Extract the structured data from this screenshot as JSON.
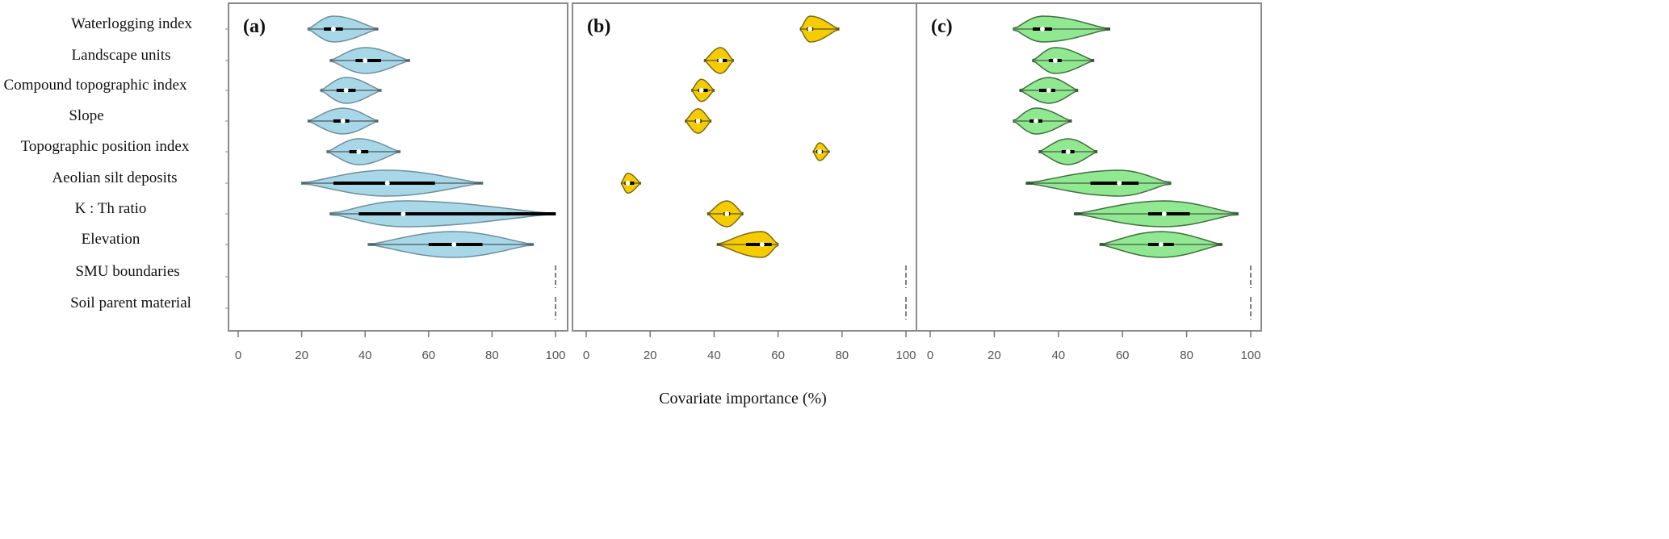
{
  "chart_data": {
    "type": "violin",
    "orientation": "horizontal",
    "xlabel": "Covariate importance (%)",
    "xlim": [
      0,
      100
    ],
    "xticks": [
      "0",
      "20",
      "40",
      "60",
      "80",
      "100"
    ],
    "categories": [
      "Waterlogging index",
      "Landscape units",
      "Compound topographic index",
      "Slope",
      "Topographic position index",
      "Aeolian silt deposits",
      "K : Th ratio",
      "Elevation",
      "SMU boundaries",
      "Soil parent material"
    ],
    "panels": [
      {
        "label": "(a)",
        "fill": "#a8d8e8",
        "stroke": "#6f8f9a",
        "violins": [
          {
            "min": 22,
            "q1": 27,
            "median": 30,
            "q3": 33,
            "max": 44
          },
          {
            "min": 29,
            "q1": 37,
            "median": 40,
            "q3": 45,
            "max": 54
          },
          {
            "min": 26,
            "q1": 31,
            "median": 34,
            "q3": 37,
            "max": 45
          },
          {
            "min": 22,
            "q1": 30,
            "median": 33,
            "q3": 35,
            "max": 44
          },
          {
            "min": 28,
            "q1": 35,
            "median": 38,
            "q3": 41,
            "max": 51
          },
          {
            "min": 20,
            "q1": 30,
            "median": 47,
            "q3": 62,
            "max": 77
          },
          {
            "min": 29,
            "q1": 38,
            "median": 52,
            "q3": 100,
            "max": 100
          },
          {
            "min": 41,
            "q1": 60,
            "median": 68,
            "q3": 77,
            "max": 93
          },
          {
            "min": 99.5,
            "q1": 100,
            "median": 100,
            "q3": 100,
            "max": 100
          },
          {
            "min": 99.5,
            "q1": 100,
            "median": 100,
            "q3": 100,
            "max": 100
          }
        ]
      },
      {
        "label": "(b)",
        "fill": "#f5cc00",
        "stroke": "#7a6a1a",
        "violins": [
          {
            "min": 67,
            "q1": 69,
            "median": 70,
            "q3": 71,
            "max": 79
          },
          {
            "min": 37,
            "q1": 41,
            "median": 42,
            "q3": 44,
            "max": 46
          },
          {
            "min": 33,
            "q1": 35,
            "median": 36,
            "q3": 38,
            "max": 40
          },
          {
            "min": 31,
            "q1": 34,
            "median": 35,
            "q3": 36,
            "max": 39
          },
          {
            "min": 71,
            "q1": 72,
            "median": 73,
            "q3": 74,
            "max": 76
          },
          {
            "min": 11,
            "q1": 12,
            "median": 13,
            "q3": 15,
            "max": 17
          },
          {
            "min": 38,
            "q1": 43,
            "median": 44,
            "q3": 45,
            "max": 49
          },
          {
            "min": 41,
            "q1": 50,
            "median": 55,
            "q3": 58,
            "max": 60
          },
          {
            "min": 100,
            "q1": 100,
            "median": 100,
            "q3": 100,
            "max": 100
          },
          {
            "min": 100,
            "q1": 100,
            "median": 100,
            "q3": 100,
            "max": 100
          }
        ]
      },
      {
        "label": "(c)",
        "fill": "#90e890",
        "stroke": "#3f6f3f",
        "violins": [
          {
            "min": 26,
            "q1": 32,
            "median": 35,
            "q3": 38,
            "max": 56
          },
          {
            "min": 32,
            "q1": 37,
            "median": 39,
            "q3": 41,
            "max": 51
          },
          {
            "min": 28,
            "q1": 34,
            "median": 37,
            "q3": 39,
            "max": 46
          },
          {
            "min": 26,
            "q1": 31,
            "median": 33,
            "q3": 35,
            "max": 44
          },
          {
            "min": 34,
            "q1": 41,
            "median": 43,
            "q3": 45,
            "max": 52
          },
          {
            "min": 30,
            "q1": 50,
            "median": 59,
            "q3": 65,
            "max": 75
          },
          {
            "min": 45,
            "q1": 68,
            "median": 73,
            "q3": 81,
            "max": 96
          },
          {
            "min": 53,
            "q1": 68,
            "median": 72,
            "q3": 76,
            "max": 91
          },
          {
            "min": 99.5,
            "q1": 100,
            "median": 100,
            "q3": 100,
            "max": 100
          },
          {
            "min": 99.5,
            "q1": 100,
            "median": 100,
            "q3": 100,
            "max": 100
          }
        ]
      }
    ]
  }
}
